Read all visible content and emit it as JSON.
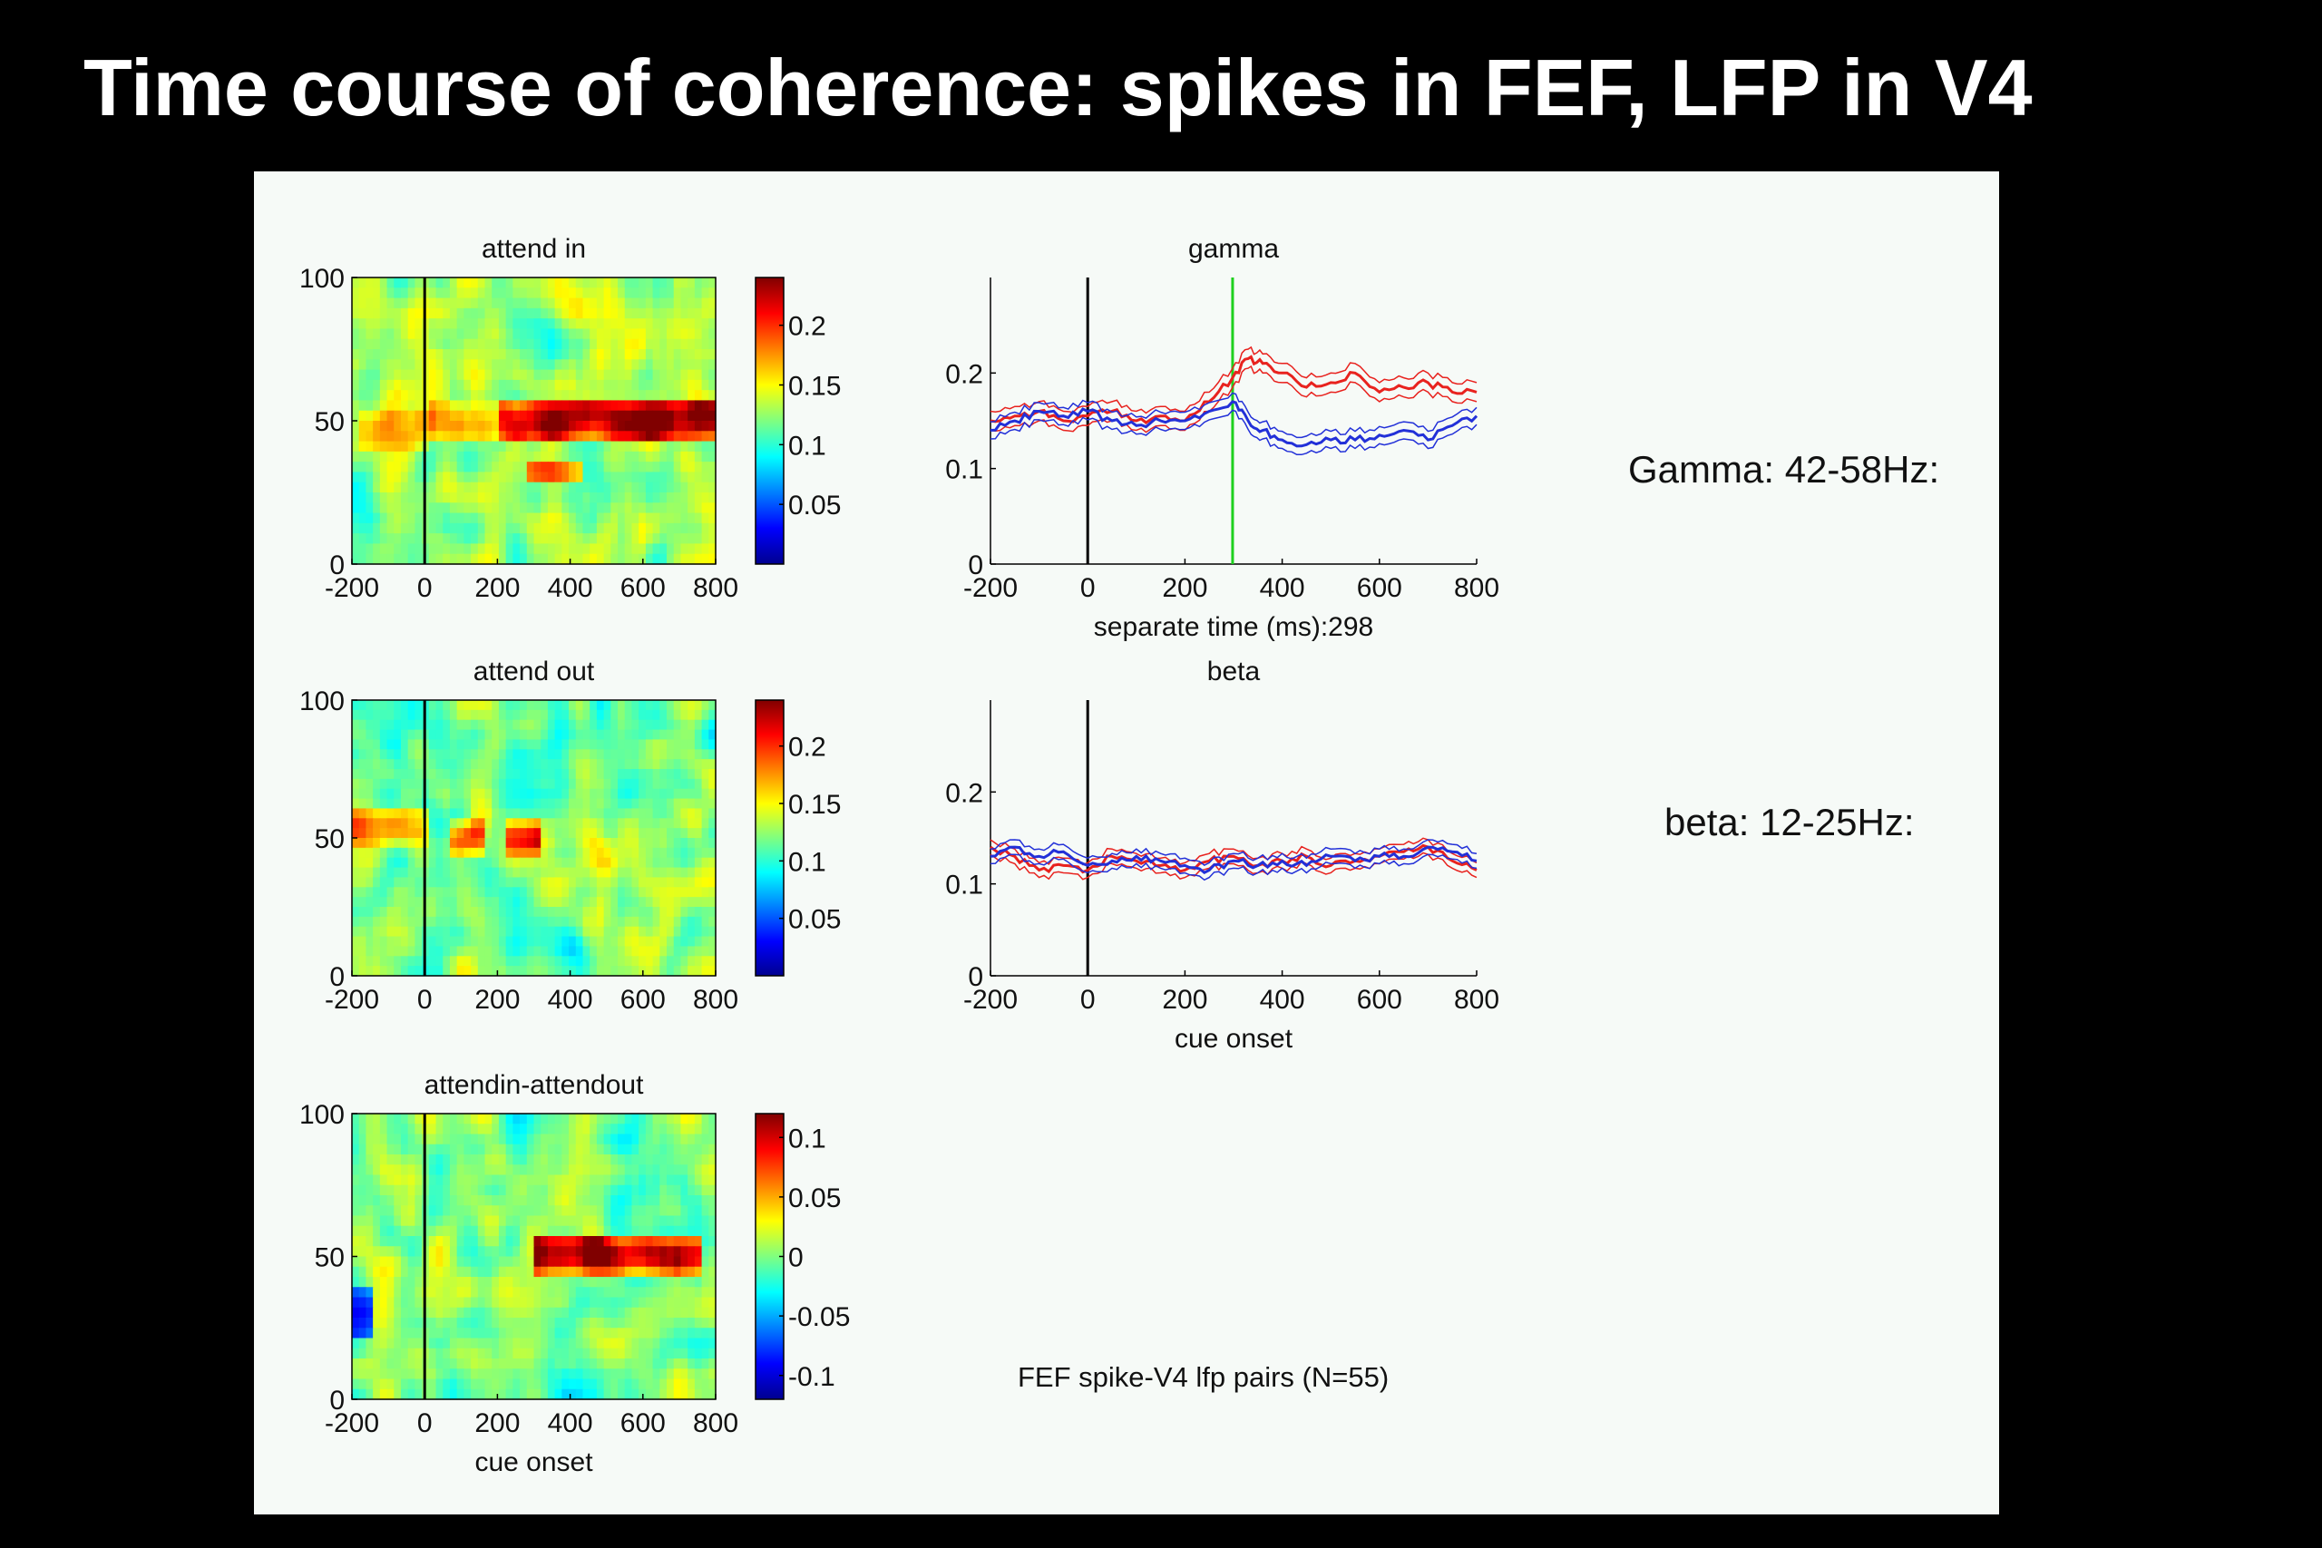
{
  "slide": {
    "title": "Time course of coherence: spikes in FEF, LFP in V4"
  },
  "side_labels": {
    "gamma": "Gamma: 42-58Hz:",
    "beta": "beta: 12-25Hz:"
  },
  "colors": {
    "background": "#000000",
    "panel": "#f6faf7",
    "attend_in": "#e8221e",
    "attend_out": "#2230d8",
    "separation_marker": "#1ed01e",
    "onset_marker": "#000000",
    "colormap": "jet"
  },
  "chart_data": [
    {
      "id": "attend-in",
      "type": "heatmap",
      "title": "attend in",
      "xlabel": "",
      "ylabel": "",
      "xlim": [
        -200,
        800
      ],
      "ylim": [
        0,
        100
      ],
      "xticks": [
        "-200",
        "0",
        "200",
        "400",
        "600",
        "800"
      ],
      "yticks": [
        "0",
        "50",
        "100"
      ],
      "onset_line_x": 0,
      "colorbar": {
        "range": [
          0,
          0.24
        ],
        "ticks": [
          "0.05",
          "0.1",
          "0.15",
          "0.2"
        ],
        "tick_values": [
          0.05,
          0.1,
          0.15,
          0.2
        ]
      },
      "pattern": {
        "baseline": 0.13,
        "bands": [
          {
            "x": [
              -180,
              20
            ],
            "y": [
              40,
              55
            ],
            "peak": 0.16
          },
          {
            "x": [
              20,
              200
            ],
            "y": [
              42,
              56
            ],
            "peak": 0.18
          },
          {
            "x": [
              200,
              800
            ],
            "y": [
              42,
              58
            ],
            "peak": 0.24
          },
          {
            "x": [
              280,
              440
            ],
            "y": [
              28,
              36
            ],
            "peak": 0.19
          }
        ]
      }
    },
    {
      "id": "attend-out",
      "type": "heatmap",
      "title": "attend out",
      "xlabel": "",
      "ylabel": "",
      "xlim": [
        -200,
        800
      ],
      "ylim": [
        0,
        100
      ],
      "xticks": [
        "-200",
        "0",
        "200",
        "400",
        "600",
        "800"
      ],
      "yticks": [
        "0",
        "50",
        "100"
      ],
      "onset_line_x": 0,
      "colorbar": {
        "range": [
          0,
          0.24
        ],
        "ticks": [
          "0.05",
          "0.1",
          "0.15",
          "0.2"
        ],
        "tick_values": [
          0.05,
          0.1,
          0.15,
          0.2
        ]
      },
      "pattern": {
        "baseline": 0.12,
        "bands": [
          {
            "x": [
              -200,
              20
            ],
            "y": [
              48,
              62
            ],
            "peak": 0.17
          },
          {
            "x": [
              60,
              160
            ],
            "y": [
              44,
              56
            ],
            "peak": 0.18
          },
          {
            "x": [
              220,
              320
            ],
            "y": [
              44,
              56
            ],
            "peak": 0.19
          }
        ]
      }
    },
    {
      "id": "attendin-attendout",
      "type": "heatmap",
      "title": "attendin-attendout",
      "xlabel": "cue onset",
      "ylabel": "",
      "xlim": [
        -200,
        800
      ],
      "ylim": [
        0,
        100
      ],
      "xticks": [
        "-200",
        "0",
        "200",
        "400",
        "600",
        "800"
      ],
      "yticks": [
        "0",
        "50",
        "100"
      ],
      "onset_line_x": 0,
      "colorbar": {
        "range": [
          -0.12,
          0.12
        ],
        "ticks": [
          "-0.1",
          "-0.05",
          "0",
          "0.05",
          "0.1"
        ],
        "tick_values": [
          -0.1,
          -0.05,
          0,
          0.05,
          0.1
        ]
      },
      "pattern": {
        "baseline": 0.0,
        "bands": [
          {
            "x": [
              300,
              760
            ],
            "y": [
              44,
              58
            ],
            "peak": 0.12
          },
          {
            "x": [
              -200,
              -140
            ],
            "y": [
              20,
              40
            ],
            "peak": -0.09
          }
        ]
      }
    },
    {
      "id": "gamma",
      "type": "line",
      "title": "gamma",
      "xlabel": "separate time (ms):298",
      "ylabel": "",
      "xlim": [
        -200,
        800
      ],
      "ylim": [
        0,
        0.3
      ],
      "xticks": [
        "-200",
        "0",
        "200",
        "400",
        "600",
        "800"
      ],
      "yticks": [
        "0",
        "0.1",
        "0.2"
      ],
      "ytick_values": [
        0,
        0.1,
        0.2
      ],
      "onset_line_x": 0,
      "separation_line_x": 298,
      "x": [
        -200,
        -150,
        -100,
        -50,
        0,
        50,
        100,
        150,
        200,
        250,
        298,
        330,
        360,
        400,
        450,
        500,
        550,
        600,
        650,
        700,
        750,
        800
      ],
      "series": [
        {
          "color": "red",
          "values": [
            0.15,
            0.155,
            0.16,
            0.15,
            0.155,
            0.16,
            0.15,
            0.155,
            0.15,
            0.17,
            0.195,
            0.215,
            0.21,
            0.2,
            0.185,
            0.19,
            0.2,
            0.18,
            0.185,
            0.19,
            0.18,
            0.18
          ],
          "error": 0.01
        },
        {
          "color": "blue",
          "values": [
            0.14,
            0.15,
            0.16,
            0.155,
            0.16,
            0.15,
            0.145,
            0.15,
            0.15,
            0.16,
            0.17,
            0.15,
            0.14,
            0.13,
            0.125,
            0.13,
            0.13,
            0.135,
            0.14,
            0.13,
            0.145,
            0.155
          ],
          "error": 0.009
        }
      ]
    },
    {
      "id": "beta",
      "type": "line",
      "title": "beta",
      "xlabel": "cue onset",
      "ylabel": "",
      "xlim": [
        -200,
        800
      ],
      "ylim": [
        0,
        0.3
      ],
      "xticks": [
        "-200",
        "0",
        "200",
        "400",
        "600",
        "800"
      ],
      "yticks": [
        "0",
        "0.1",
        "0.2"
      ],
      "ytick_values": [
        0,
        0.1,
        0.2
      ],
      "onset_line_x": 0,
      "x": [
        -200,
        -150,
        -100,
        -50,
        0,
        50,
        100,
        150,
        200,
        250,
        300,
        350,
        400,
        450,
        500,
        550,
        600,
        650,
        700,
        750,
        800
      ],
      "series": [
        {
          "color": "red",
          "values": [
            0.14,
            0.13,
            0.115,
            0.12,
            0.115,
            0.13,
            0.125,
            0.12,
            0.115,
            0.125,
            0.13,
            0.12,
            0.125,
            0.13,
            0.12,
            0.125,
            0.13,
            0.135,
            0.14,
            0.125,
            0.115
          ],
          "error": 0.008
        },
        {
          "color": "blue",
          "values": [
            0.13,
            0.14,
            0.13,
            0.135,
            0.12,
            0.125,
            0.13,
            0.125,
            0.12,
            0.115,
            0.125,
            0.12,
            0.125,
            0.12,
            0.13,
            0.125,
            0.13,
            0.13,
            0.14,
            0.135,
            0.125
          ],
          "error": 0.008
        }
      ]
    }
  ],
  "annotation": {
    "text": "FEF spike-V4 lfp pairs (N=55)"
  }
}
